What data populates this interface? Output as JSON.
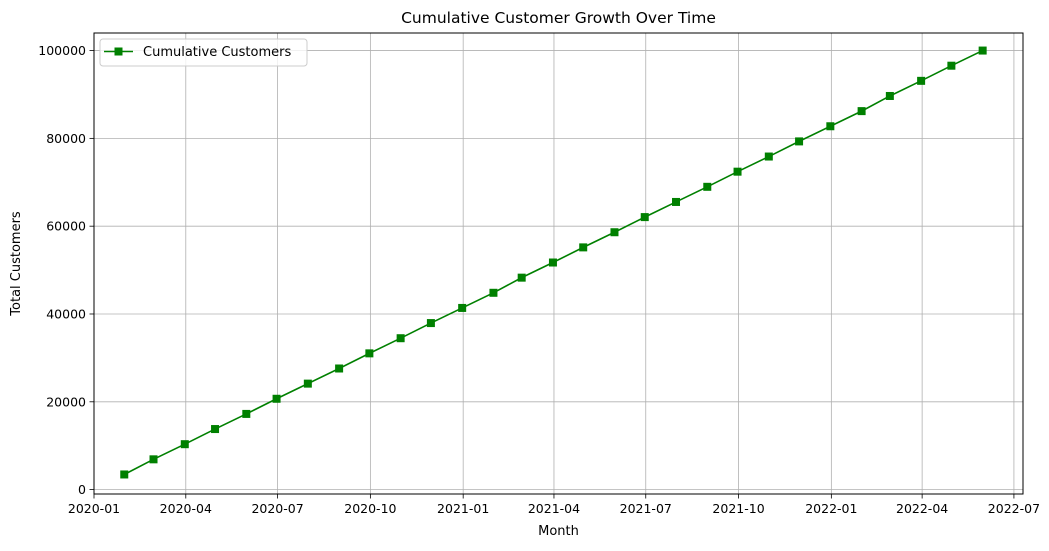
{
  "chart_data": {
    "type": "line",
    "title": "Cumulative Customer Growth Over Time",
    "xlabel": "Month",
    "ylabel": "Total Customers",
    "x_axis": {
      "type": "date",
      "range": [
        "2020-01-01",
        "2022-07-10"
      ],
      "ticks": [
        {
          "date": "2020-01-01",
          "label": "2020-01"
        },
        {
          "date": "2020-04-01",
          "label": "2020-04"
        },
        {
          "date": "2020-07-01",
          "label": "2020-07"
        },
        {
          "date": "2020-10-01",
          "label": "2020-10"
        },
        {
          "date": "2021-01-01",
          "label": "2021-01"
        },
        {
          "date": "2021-04-01",
          "label": "2021-04"
        },
        {
          "date": "2021-07-01",
          "label": "2021-07"
        },
        {
          "date": "2021-10-01",
          "label": "2021-10"
        },
        {
          "date": "2022-01-01",
          "label": "2022-01"
        },
        {
          "date": "2022-04-01",
          "label": "2022-04"
        },
        {
          "date": "2022-07-01",
          "label": "2022-07"
        }
      ]
    },
    "y_axis": {
      "range": [
        -1000,
        104000
      ],
      "ticks": [
        0,
        20000,
        40000,
        60000,
        80000,
        100000
      ]
    },
    "grid": true,
    "legend_position": "top-left",
    "series": [
      {
        "name": "Cumulative Customers",
        "color": "#008000",
        "marker": "square",
        "x": [
          "2020-01-31",
          "2020-02-29",
          "2020-03-31",
          "2020-04-30",
          "2020-05-31",
          "2020-06-30",
          "2020-07-31",
          "2020-08-31",
          "2020-09-30",
          "2020-10-31",
          "2020-11-30",
          "2020-12-31",
          "2021-01-31",
          "2021-02-28",
          "2021-03-31",
          "2021-04-30",
          "2021-05-31",
          "2021-06-30",
          "2021-07-31",
          "2021-08-31",
          "2021-09-30",
          "2021-10-31",
          "2021-11-30",
          "2021-12-31",
          "2022-01-31",
          "2022-02-28",
          "2022-03-31",
          "2022-04-30",
          "2022-05-31"
        ],
        "values": [
          3448,
          6897,
          10345,
          13793,
          17241,
          20690,
          24138,
          27586,
          31034,
          34483,
          37931,
          41379,
          44828,
          48276,
          51724,
          55172,
          58621,
          62069,
          65517,
          68966,
          72414,
          75862,
          79310,
          82759,
          86207,
          89655,
          93103,
          96552,
          100000
        ]
      }
    ]
  }
}
